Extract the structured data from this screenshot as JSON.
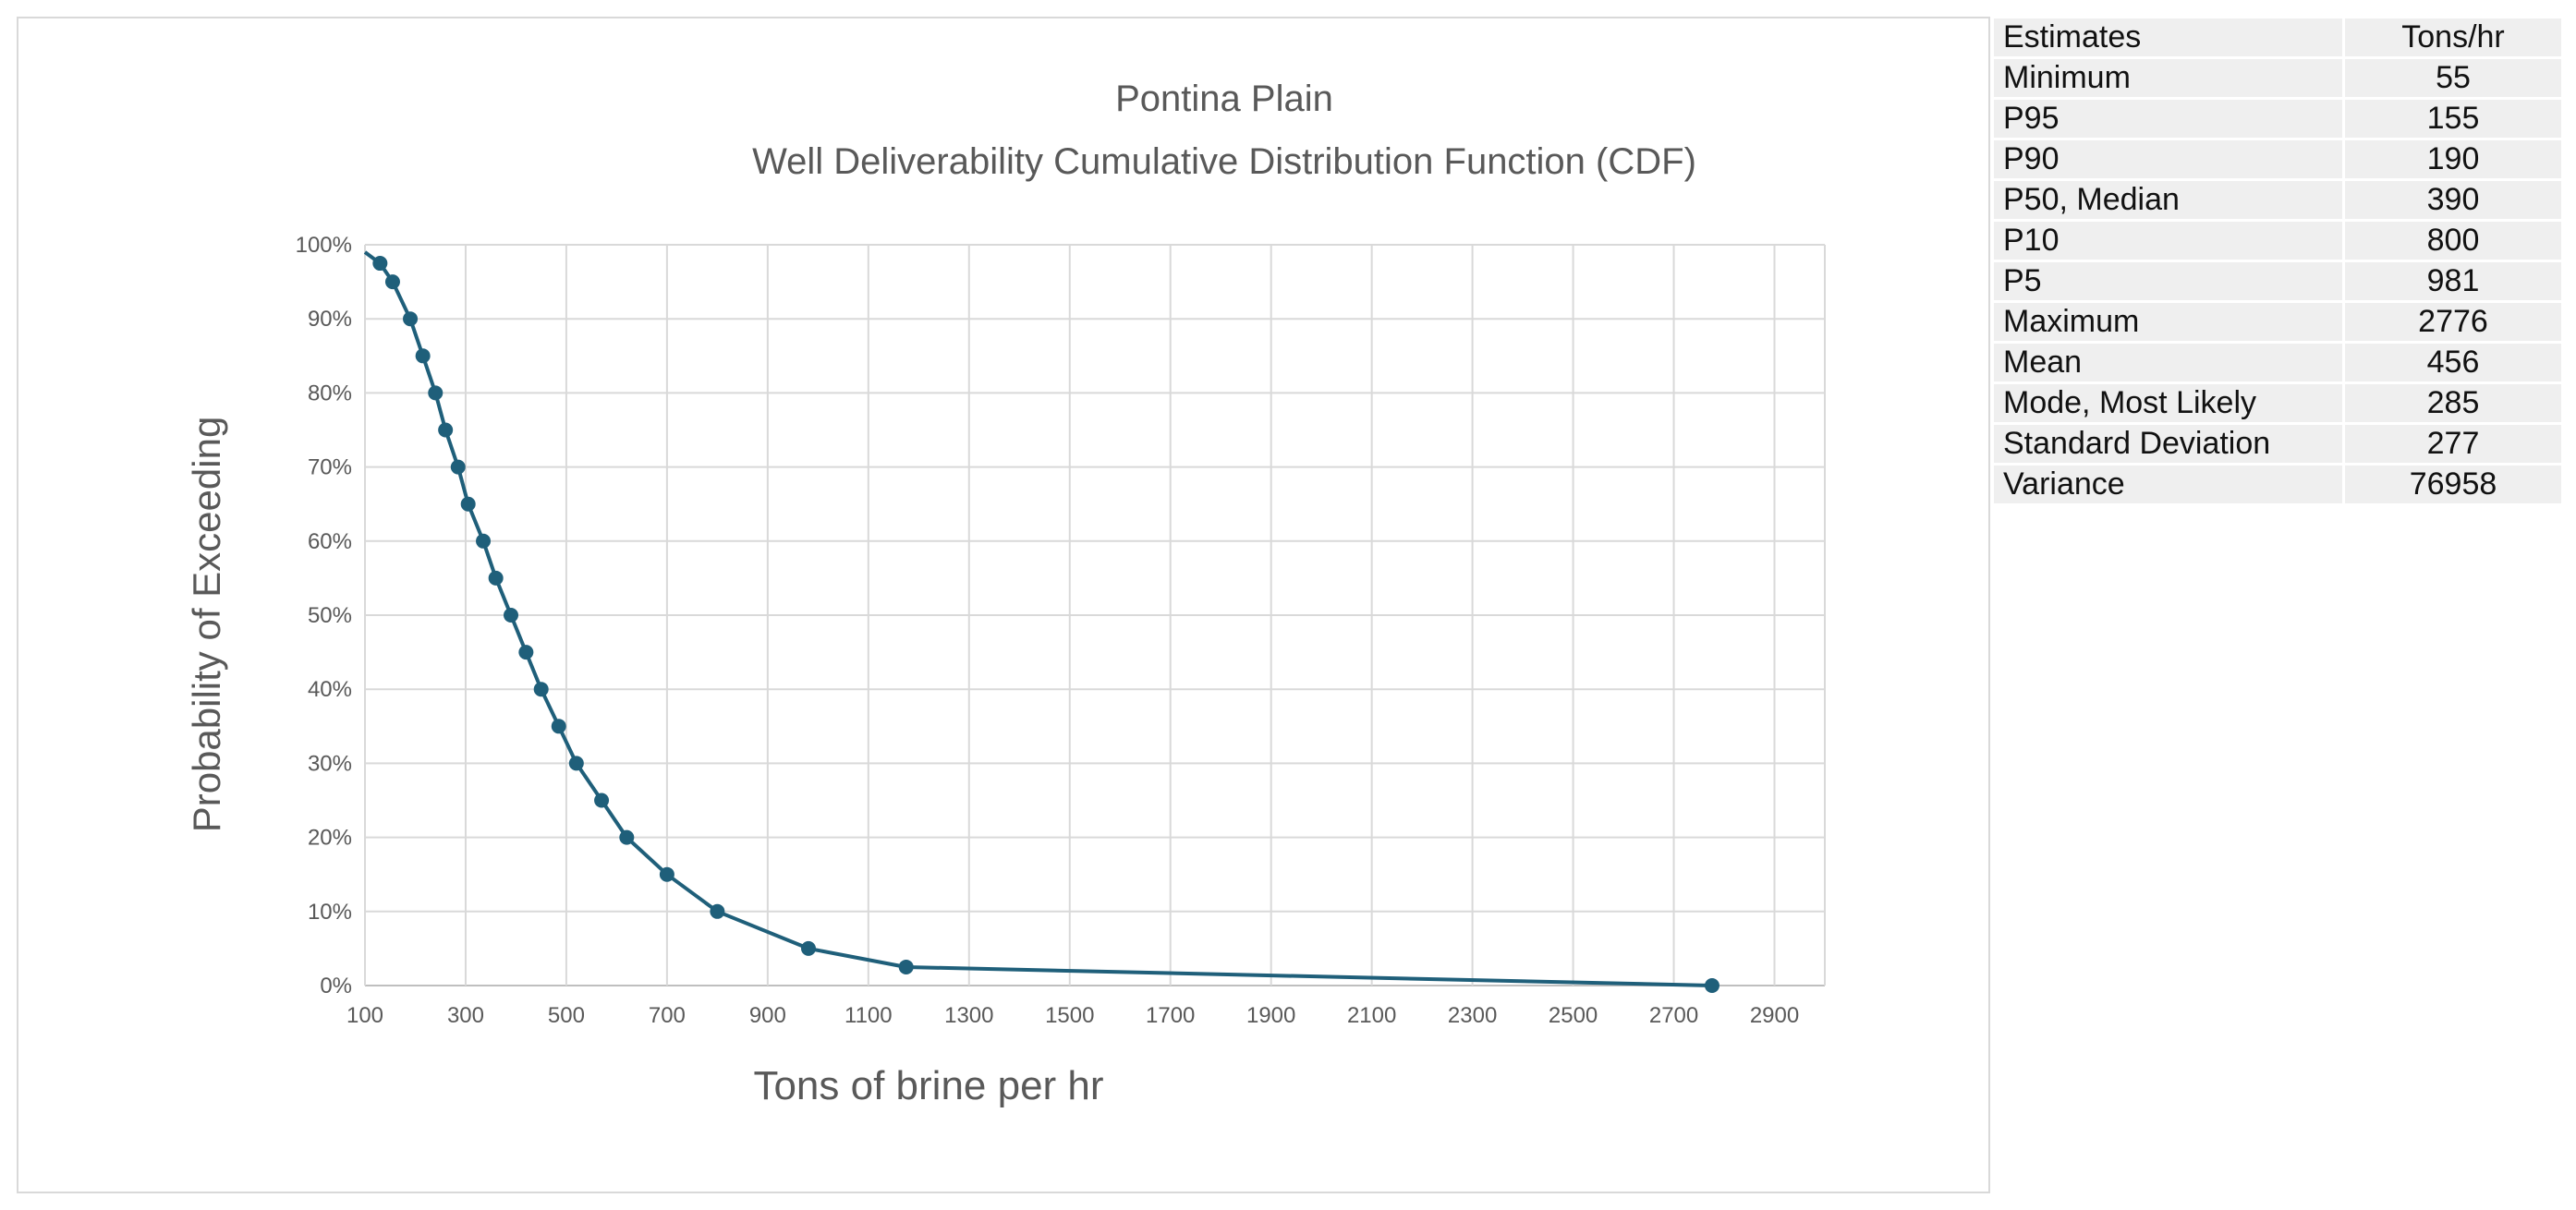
{
  "chart_data": {
    "type": "line",
    "title": "Pontina Plain",
    "subtitle": "Well Deliverability Cumulative Distribution Function (CDF)",
    "xlabel": "Tons of brine per hr",
    "ylabel": "Probability of Exceeding",
    "xlim": [
      100,
      3000
    ],
    "ylim": [
      0,
      100
    ],
    "x_ticks": [
      100,
      300,
      500,
      700,
      900,
      1100,
      1300,
      1500,
      1700,
      1900,
      2100,
      2300,
      2500,
      2700,
      2900
    ],
    "y_ticks": [
      0,
      10,
      20,
      30,
      40,
      50,
      60,
      70,
      80,
      90,
      100
    ],
    "y_tick_suffix": "%",
    "grid": true,
    "marker_color": "#1f5f7a",
    "series": [
      {
        "name": "Probability of Exceeding",
        "points": [
          [
            100,
            99
          ],
          [
            130,
            97.5
          ],
          [
            155,
            95
          ],
          [
            190,
            90
          ],
          [
            215,
            85
          ],
          [
            240,
            80
          ],
          [
            260,
            75
          ],
          [
            285,
            70
          ],
          [
            305,
            65
          ],
          [
            335,
            60
          ],
          [
            360,
            55
          ],
          [
            390,
            50
          ],
          [
            420,
            45
          ],
          [
            450,
            40
          ],
          [
            485,
            35
          ],
          [
            520,
            30
          ],
          [
            570,
            25
          ],
          [
            620,
            20
          ],
          [
            700,
            15
          ],
          [
            800,
            10
          ],
          [
            981,
            5
          ],
          [
            1175,
            2.5
          ],
          [
            2776,
            0
          ]
        ]
      }
    ]
  },
  "estimates_table": {
    "headers": [
      "Estimates",
      "Tons/hr"
    ],
    "rows": [
      [
        "Minimum",
        "55"
      ],
      [
        "P95",
        "155"
      ],
      [
        "P90",
        "190"
      ],
      [
        "P50, Median",
        "390"
      ],
      [
        "P10",
        "800"
      ],
      [
        "P5",
        "981"
      ],
      [
        "Maximum",
        "2776"
      ],
      [
        "Mean",
        "456"
      ],
      [
        "Mode, Most Likely",
        "285"
      ],
      [
        "Standard Deviation",
        "277"
      ],
      [
        "Variance",
        "76958"
      ]
    ]
  }
}
